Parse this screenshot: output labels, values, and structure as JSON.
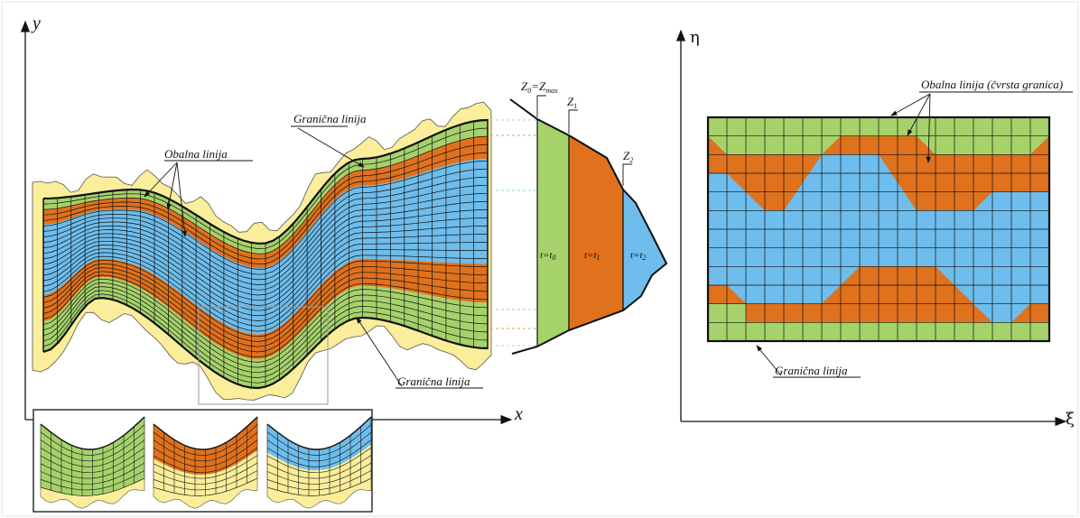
{
  "left_axes": {
    "y_label": "y",
    "x_label": "x"
  },
  "right_axes": {
    "y_label": "η",
    "x_label": "ξ"
  },
  "callouts": {
    "obalna_left": "Obalna linija",
    "granicna_top": "Granična linija",
    "granicna_bottom": "Granična linija",
    "obalna_right": "Obalna linija (čvrsta granica)",
    "granicna_right": "Granična linija"
  },
  "levels": {
    "z0": {
      "main": "Z",
      "sub": "0",
      "eq": "=Z",
      "sub2": "max"
    },
    "z1": {
      "main": "Z",
      "sub": "1"
    },
    "z2": {
      "main": "Z",
      "sub": "2"
    }
  },
  "time_labels": {
    "t0": {
      "main": "t=t",
      "sub": "0"
    },
    "t1": {
      "main": "t=t",
      "sub": "1"
    },
    "t2": {
      "main": "t=t",
      "sub": "2"
    }
  },
  "colors": {
    "green": "#a6d26b",
    "orange": "#e0711d",
    "blue": "#6ebdec",
    "yellow": "#fbee9a",
    "line": "#111111"
  }
}
